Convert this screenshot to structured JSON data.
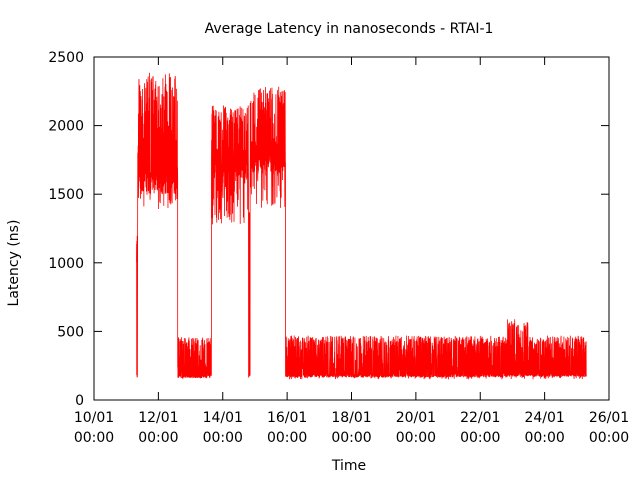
{
  "chart_data": {
    "type": "line",
    "title": "Average Latency in nanoseconds - RTAI-1",
    "xlabel": "Time",
    "ylabel": "Latency (ns)",
    "xlim_days": [
      10,
      26
    ],
    "ylim": [
      0,
      2500
    ],
    "yticks": [
      0,
      500,
      1000,
      1500,
      2000,
      2500
    ],
    "xticks": [
      {
        "day": 10,
        "line1": "10/01",
        "line2": "00:00"
      },
      {
        "day": 12,
        "line1": "12/01",
        "line2": "00:00"
      },
      {
        "day": 14,
        "line1": "14/01",
        "line2": "00:00"
      },
      {
        "day": 16,
        "line1": "16/01",
        "line2": "00:00"
      },
      {
        "day": 18,
        "line1": "18/01",
        "line2": "00:00"
      },
      {
        "day": 20,
        "line1": "20/01",
        "line2": "00:00"
      },
      {
        "day": 22,
        "line1": "22/01",
        "line2": "00:00"
      },
      {
        "day": 24,
        "line1": "24/01",
        "line2": "00:00"
      },
      {
        "day": 26,
        "line1": "26/01",
        "line2": "00:00"
      }
    ],
    "grid": false,
    "series_color": "#ff0000",
    "segments": [
      {
        "start": 11.32,
        "end": 11.35,
        "base": 160,
        "low": 900,
        "high": 1250
      },
      {
        "start": 11.36,
        "end": 12.6,
        "base": 1500,
        "low": 1380,
        "high": 2390
      },
      {
        "start": 12.6,
        "end": 13.65,
        "base": 160,
        "low": 150,
        "high": 460
      },
      {
        "start": 13.65,
        "end": 14.8,
        "base": 1600,
        "low": 1280,
        "high": 2150
      },
      {
        "start": 14.8,
        "end": 14.85,
        "base": 160,
        "low": 150,
        "high": 1400
      },
      {
        "start": 14.85,
        "end": 15.95,
        "base": 1650,
        "low": 1380,
        "high": 2290
      },
      {
        "start": 15.95,
        "end": 22.85,
        "base": 165,
        "low": 150,
        "high": 470
      },
      {
        "start": 22.85,
        "end": 23.5,
        "base": 170,
        "low": 150,
        "high": 590
      },
      {
        "start": 23.5,
        "end": 25.3,
        "base": 170,
        "low": 150,
        "high": 470
      }
    ]
  }
}
